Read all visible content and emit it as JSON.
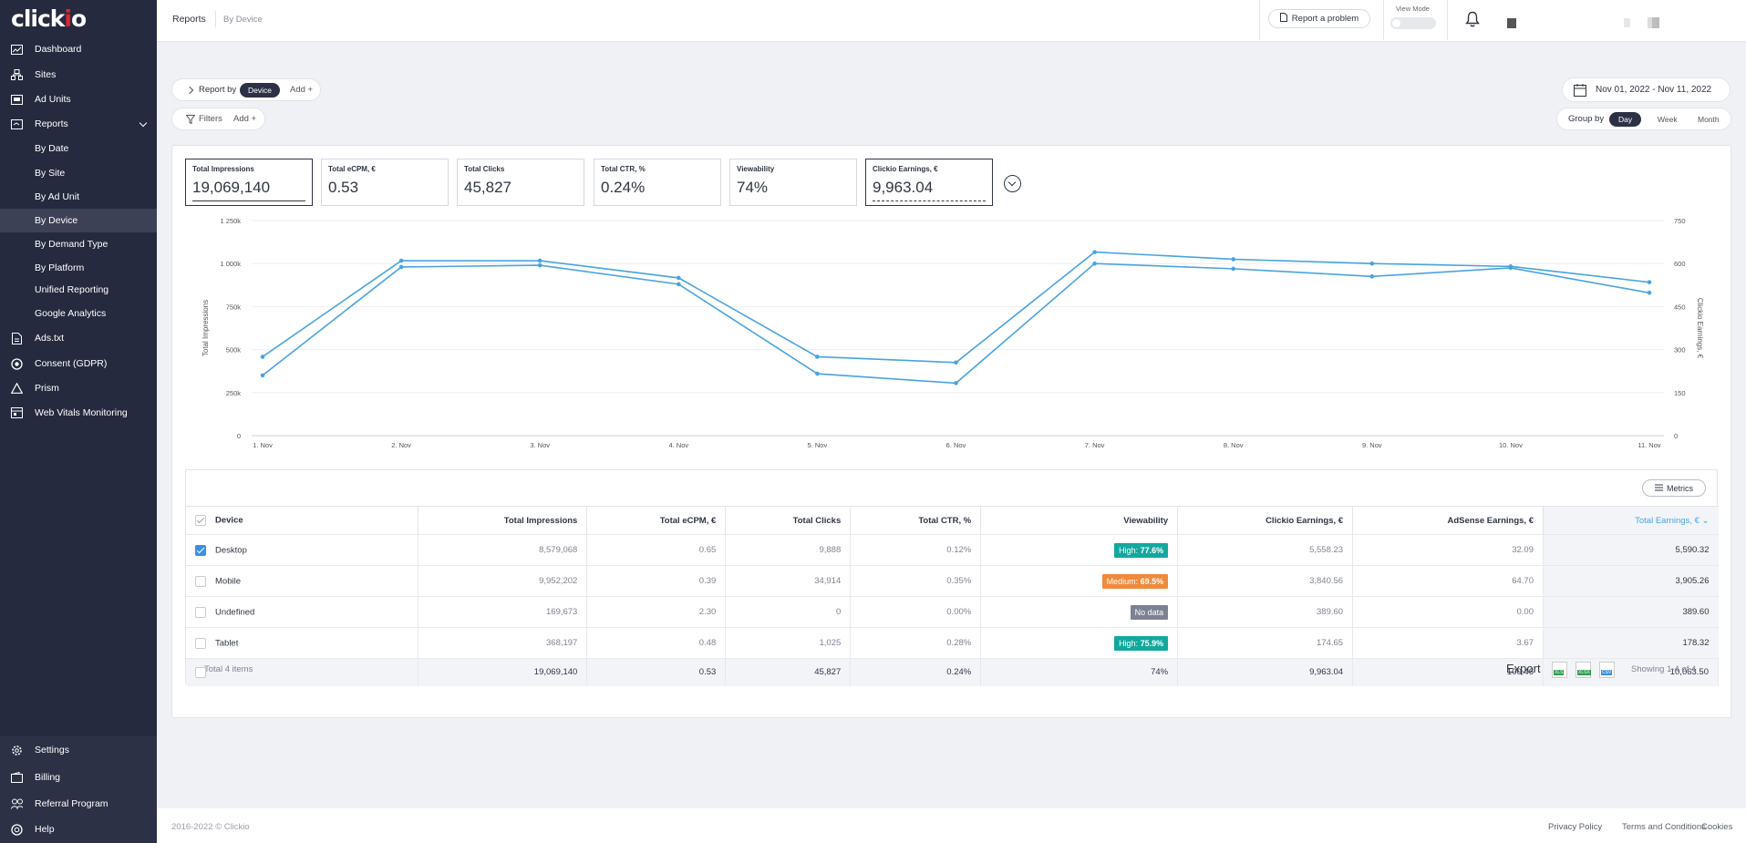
{
  "app": {
    "logo": "clickio"
  },
  "sidebar": {
    "items": [
      {
        "label": "Dashboard",
        "icon": "dashboard-icon"
      },
      {
        "label": "Sites",
        "icon": "sites-icon"
      },
      {
        "label": "Ad Units",
        "icon": "ad-units-icon"
      },
      {
        "label": "Reports",
        "icon": "reports-icon"
      },
      {
        "label": "By Date"
      },
      {
        "label": "By Site"
      },
      {
        "label": "By Ad Unit"
      },
      {
        "label": "By Device"
      },
      {
        "label": "By Demand Type"
      },
      {
        "label": "By Platform"
      },
      {
        "label": "Unified Reporting"
      },
      {
        "label": "Google Analytics"
      },
      {
        "label": "Ads.txt",
        "icon": "file-icon"
      },
      {
        "label": "Consent (GDPR)",
        "icon": "consent-icon"
      },
      {
        "label": "Prism",
        "icon": "prism-icon"
      },
      {
        "label": "Web Vitals Monitoring",
        "icon": "web-vitals-icon"
      }
    ],
    "bottom": [
      {
        "label": "Settings",
        "icon": "gear-icon"
      },
      {
        "label": "Billing",
        "icon": "wallet-icon"
      },
      {
        "label": "Referral Program",
        "icon": "people-icon"
      },
      {
        "label": "Help",
        "icon": "help-icon"
      }
    ]
  },
  "topbar": {
    "crumb": "Reports",
    "sub": "By Device",
    "report_problem": "Report a problem",
    "view_mode": "View Mode"
  },
  "controls": {
    "report_by": "Report by",
    "report_by_chip": "Device",
    "add": "Add +",
    "filters": "Filters",
    "date_range": "Nov 01, 2022 - Nov 11, 2022",
    "group_by": "Group by",
    "groups": [
      "Day",
      "Week",
      "Month"
    ],
    "group_selected": "Day"
  },
  "kpis": [
    {
      "label": "Total Impressions",
      "value": "19,069,140"
    },
    {
      "label": "Total eCPM, €",
      "value": "0.53"
    },
    {
      "label": "Total Clicks",
      "value": "45,827"
    },
    {
      "label": "Total CTR, %",
      "value": "0.24%"
    },
    {
      "label": "Viewability",
      "value": "74%"
    },
    {
      "label": "Clickio Earnings, €",
      "value": "9,963.04"
    }
  ],
  "chart_data": {
    "type": "line",
    "x": [
      "1. Nov",
      "2. Nov",
      "3. Nov",
      "4. Nov",
      "5. Nov",
      "6. Nov",
      "7. Nov",
      "8. Nov",
      "9. Nov",
      "10. Nov",
      "11. Nov"
    ],
    "ylabel": "Total Impressions",
    "ylabel_right": "Clickio Earnings, €",
    "y_ticks": [
      "0",
      "250k",
      "500k",
      "750k",
      "1 000k",
      "1 250k"
    ],
    "y_right_ticks": [
      "0",
      "150",
      "300",
      "450",
      "600",
      "750"
    ],
    "ylim": [
      0,
      1250000
    ],
    "ylim_right": [
      0,
      750
    ],
    "series": [
      {
        "axis": "left",
        "values": [
          350000,
          980000,
          990000,
          880000,
          360000,
          305000,
          1000000,
          970000,
          925000,
          975000,
          830000
        ]
      },
      {
        "axis": "right",
        "values": [
          275,
          610,
          610,
          550,
          275,
          255,
          640,
          615,
          600,
          590,
          535
        ]
      }
    ],
    "color": "#4aa3df"
  },
  "table": {
    "metrics_button": "Metrics",
    "columns": [
      "Device",
      "Total Impressions",
      "Total eCPM, €",
      "Total Clicks",
      "Total CTR, %",
      "Viewability",
      "Clickio Earnings, €",
      "AdSense Earnings, €",
      "Total Earnings, €"
    ],
    "rows": [
      {
        "device": "Desktop",
        "checked": true,
        "impressions": "8,579,068",
        "ecpm": "0.65",
        "clicks": "9,888",
        "ctr": "0.12%",
        "view_label": "High:",
        "view_value": "77.6%",
        "view_color": "#13a89e",
        "clickio": "5,558.23",
        "adsense": "32.09",
        "total": "5,590.32"
      },
      {
        "device": "Mobile",
        "checked": false,
        "impressions": "9,952,202",
        "ecpm": "0.39",
        "clicks": "34,914",
        "ctr": "0.35%",
        "view_label": "Medium:",
        "view_value": "69.5%",
        "view_color": "#f08a3c",
        "clickio": "3,840.56",
        "adsense": "64.70",
        "total": "3,905.26"
      },
      {
        "device": "Undefined",
        "checked": false,
        "impressions": "169,673",
        "ecpm": "2.30",
        "clicks": "0",
        "ctr": "0.00%",
        "view_label": "No data",
        "view_value": "",
        "view_color": "#7d8193",
        "clickio": "389.60",
        "adsense": "0.00",
        "total": "389.60"
      },
      {
        "device": "Tablet",
        "checked": false,
        "impressions": "368,197",
        "ecpm": "0.48",
        "clicks": "1,025",
        "ctr": "0.28%",
        "view_label": "High:",
        "view_value": "75.9%",
        "view_color": "#13a89e",
        "clickio": "174.65",
        "adsense": "3.67",
        "total": "178.32"
      }
    ],
    "total": {
      "impressions": "19,069,140",
      "ecpm": "0.53",
      "clicks": "45,827",
      "ctr": "0.24%",
      "viewability": "74%",
      "clickio": "9,963.04",
      "adsense": "100.46",
      "total": "10,063.50"
    },
    "total_items": "Total 4 items",
    "export": "Export",
    "export_formats": [
      "XLS",
      "XLSX",
      "CSV"
    ],
    "showing": "Showing 1-4 of 4"
  },
  "footer": {
    "copyright": "2016-2022 © Clickio",
    "links": [
      "Privacy Policy",
      "Terms and Conditions",
      "Cookies"
    ]
  }
}
